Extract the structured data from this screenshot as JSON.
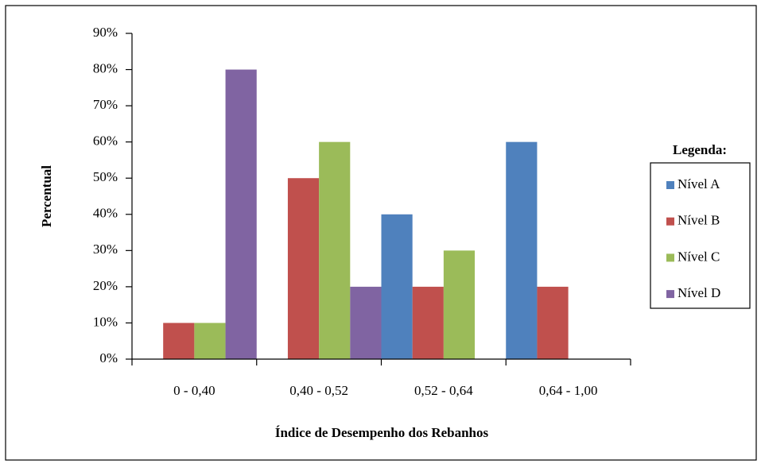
{
  "chart_data": {
    "type": "bar",
    "x_label": "Índice de Desempenho dos Rebanhos",
    "y_label": "Percentual",
    "legend_title": "Legenda:",
    "legend_position": "right",
    "grid": false,
    "categories": [
      "0 - 0,40",
      "0,40 - 0,52",
      "0,52 - 0,64",
      "0,64 - 1,00"
    ],
    "series": [
      {
        "name": "Nível A",
        "color": "#4f81bd",
        "values": [
          0,
          0,
          40,
          60
        ]
      },
      {
        "name": "Nível B",
        "color": "#c0504d",
        "values": [
          10,
          50,
          20,
          20
        ]
      },
      {
        "name": "Nível C",
        "color": "#9bbb59",
        "values": [
          10,
          60,
          30,
          0
        ]
      },
      {
        "name": "Nível D",
        "color": "#8064a2",
        "values": [
          80,
          20,
          0,
          0
        ]
      }
    ],
    "ylim": [
      0,
      90
    ],
    "yticks": [
      {
        "value": 0,
        "label": "0%"
      },
      {
        "value": 10,
        "label": "10%"
      },
      {
        "value": 20,
        "label": "20%"
      },
      {
        "value": 30,
        "label": "30%"
      },
      {
        "value": 40,
        "label": "40%"
      },
      {
        "value": 50,
        "label": "50%"
      },
      {
        "value": 60,
        "label": "60%"
      },
      {
        "value": 70,
        "label": "70%"
      },
      {
        "value": 80,
        "label": "80%"
      },
      {
        "value": 90,
        "label": "90%"
      }
    ]
  }
}
